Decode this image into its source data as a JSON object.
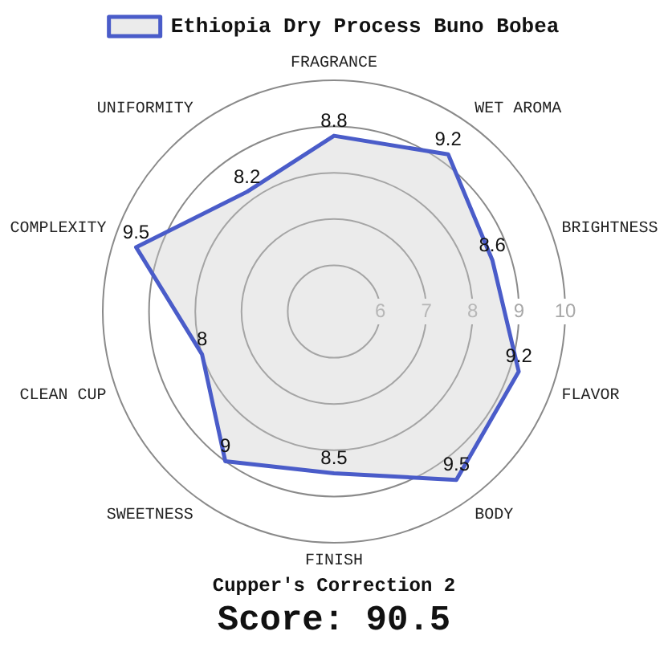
{
  "chart_data": {
    "type": "radar",
    "categories": [
      "FRAGRANCE",
      "WET AROMA",
      "BRIGHTNESS",
      "FLAVOR",
      "BODY",
      "FINISH",
      "SWEETNESS",
      "CLEAN CUP",
      "COMPLEXITY",
      "UNIFORMITY"
    ],
    "series": [
      {
        "name": "Ethiopia Dry Process Buno Bobea",
        "color": "#4a5cc9",
        "values": [
          8.8,
          9.2,
          8.6,
          9.2,
          9.5,
          8.5,
          9,
          8,
          9.5,
          8.2
        ]
      }
    ],
    "ylim": [
      5,
      10
    ],
    "yticks": [
      6,
      7,
      8,
      9,
      10
    ],
    "grid": true,
    "legend": "top",
    "data_labels": true,
    "annotations": [
      "Cupper's Correction 2",
      "Score: 90.5"
    ]
  }
}
